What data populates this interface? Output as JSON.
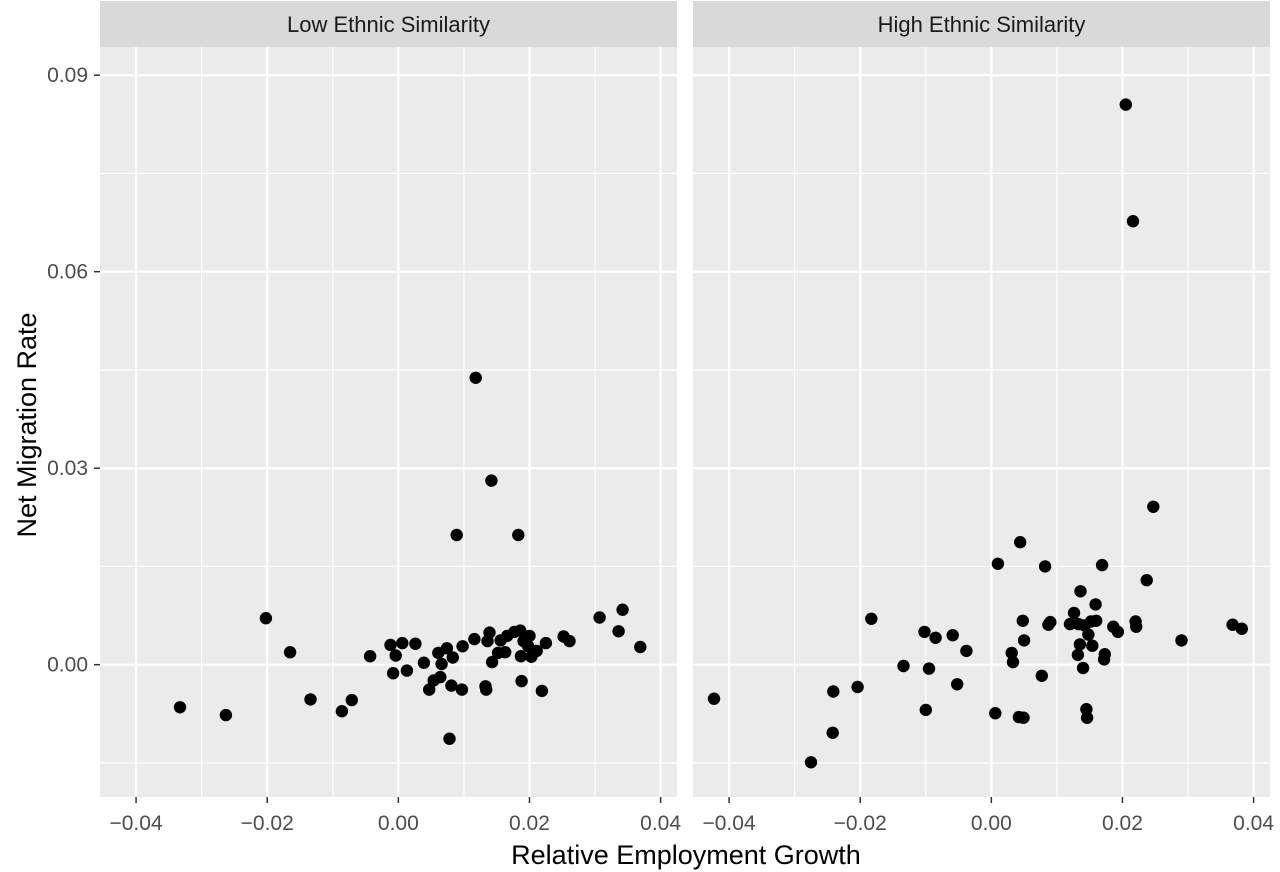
{
  "chart_data": {
    "type": "scatter",
    "xlabel": "Relative Employment Growth",
    "ylabel": "Net Migration Rate",
    "xlim": [
      -0.0455,
      0.0425
    ],
    "ylim": [
      -0.0202,
      0.0943
    ],
    "x_ticks": [
      -0.04,
      -0.02,
      0.0,
      0.02,
      0.04
    ],
    "x_tick_labels": [
      "−0.04",
      "−0.02",
      "0.00",
      "0.02",
      "0.04"
    ],
    "y_ticks": [
      0.0,
      0.03,
      0.06,
      0.09
    ],
    "y_tick_labels": [
      "0.00",
      "0.03",
      "0.06",
      "0.09"
    ],
    "grid": true,
    "legend": "none",
    "point_color": "#000000",
    "panels": [
      {
        "strip": "Low Ethnic Similarity",
        "points": [
          {
            "x": -0.0333,
            "y": -0.0065
          },
          {
            "x": -0.0263,
            "y": -0.0077
          },
          {
            "x": -0.0202,
            "y": 0.0071
          },
          {
            "x": -0.0165,
            "y": 0.0019
          },
          {
            "x": -0.0134,
            "y": -0.0053
          },
          {
            "x": -0.0086,
            "y": -0.0071
          },
          {
            "x": -0.0071,
            "y": -0.0054
          },
          {
            "x": -0.0043,
            "y": 0.0013
          },
          {
            "x": -0.0012,
            "y": 0.003
          },
          {
            "x": -0.0008,
            "y": -0.0013
          },
          {
            "x": -0.0004,
            "y": 0.0014
          },
          {
            "x": 0.0006,
            "y": 0.0033
          },
          {
            "x": 0.0013,
            "y": -0.0009
          },
          {
            "x": 0.0026,
            "y": 0.0032
          },
          {
            "x": 0.0039,
            "y": 0.0003
          },
          {
            "x": 0.0047,
            "y": -0.0038
          },
          {
            "x": 0.0054,
            "y": -0.0024
          },
          {
            "x": 0.0061,
            "y": 0.0018
          },
          {
            "x": 0.0064,
            "y": -0.0019
          },
          {
            "x": 0.0066,
            "y": 0.0001
          },
          {
            "x": 0.0074,
            "y": 0.0025
          },
          {
            "x": 0.0078,
            "y": -0.0113
          },
          {
            "x": 0.0081,
            "y": -0.0032
          },
          {
            "x": 0.0083,
            "y": 0.0011
          },
          {
            "x": 0.0089,
            "y": 0.0198
          },
          {
            "x": 0.0097,
            "y": -0.0038
          },
          {
            "x": 0.0098,
            "y": 0.0028
          },
          {
            "x": 0.0116,
            "y": 0.0039
          },
          {
            "x": 0.0118,
            "y": 0.0438
          },
          {
            "x": 0.0133,
            "y": -0.0033
          },
          {
            "x": 0.0134,
            "y": -0.0038
          },
          {
            "x": 0.0136,
            "y": 0.0036
          },
          {
            "x": 0.0139,
            "y": 0.0049
          },
          {
            "x": 0.0142,
            "y": 0.0281
          },
          {
            "x": 0.0143,
            "y": 0.0004
          },
          {
            "x": 0.0152,
            "y": 0.0018
          },
          {
            "x": 0.0156,
            "y": 0.0037
          },
          {
            "x": 0.0163,
            "y": 0.0019
          },
          {
            "x": 0.0166,
            "y": 0.0044
          },
          {
            "x": 0.0177,
            "y": 0.005
          },
          {
            "x": 0.0183,
            "y": 0.0198
          },
          {
            "x": 0.0186,
            "y": 0.0052
          },
          {
            "x": 0.0187,
            "y": 0.0013
          },
          {
            "x": 0.0188,
            "y": -0.0025
          },
          {
            "x": 0.0191,
            "y": 0.0036
          },
          {
            "x": 0.0198,
            "y": 0.0028
          },
          {
            "x": 0.02,
            "y": 0.0044
          },
          {
            "x": 0.0203,
            "y": 0.0012
          },
          {
            "x": 0.0211,
            "y": 0.0021
          },
          {
            "x": 0.0219,
            "y": -0.004
          },
          {
            "x": 0.0225,
            "y": 0.0033
          },
          {
            "x": 0.0252,
            "y": 0.0043
          },
          {
            "x": 0.0261,
            "y": 0.0036
          },
          {
            "x": 0.0307,
            "y": 0.0072
          },
          {
            "x": 0.0336,
            "y": 0.0051
          },
          {
            "x": 0.0342,
            "y": 0.0084
          },
          {
            "x": 0.0369,
            "y": 0.0027
          }
        ]
      },
      {
        "strip": "High Ethnic Similarity",
        "points": [
          {
            "x": -0.0423,
            "y": -0.0052
          },
          {
            "x": -0.0275,
            "y": -0.0149
          },
          {
            "x": -0.0242,
            "y": -0.0104
          },
          {
            "x": -0.0241,
            "y": -0.0041
          },
          {
            "x": -0.0204,
            "y": -0.0034
          },
          {
            "x": -0.0183,
            "y": 0.007
          },
          {
            "x": -0.0134,
            "y": -0.0002
          },
          {
            "x": -0.0102,
            "y": 0.005
          },
          {
            "x": -0.01,
            "y": -0.0069
          },
          {
            "x": -0.0095,
            "y": -0.0006
          },
          {
            "x": -0.0085,
            "y": 0.0041
          },
          {
            "x": -0.0059,
            "y": 0.0045
          },
          {
            "x": -0.0052,
            "y": -0.003
          },
          {
            "x": -0.0038,
            "y": 0.0021
          },
          {
            "x": 0.0006,
            "y": -0.0074
          },
          {
            "x": 0.001,
            "y": 0.0154
          },
          {
            "x": 0.0031,
            "y": 0.0018
          },
          {
            "x": 0.0033,
            "y": 0.0004
          },
          {
            "x": 0.0042,
            "y": -0.008
          },
          {
            "x": 0.0044,
            "y": 0.0187
          },
          {
            "x": 0.0048,
            "y": 0.0067
          },
          {
            "x": 0.0049,
            "y": -0.0081
          },
          {
            "x": 0.005,
            "y": 0.0037
          },
          {
            "x": 0.0077,
            "y": -0.0017
          },
          {
            "x": 0.0082,
            "y": 0.015
          },
          {
            "x": 0.0087,
            "y": 0.0061
          },
          {
            "x": 0.009,
            "y": 0.0065
          },
          {
            "x": 0.012,
            "y": 0.0062
          },
          {
            "x": 0.0126,
            "y": 0.0079
          },
          {
            "x": 0.0132,
            "y": 0.0015
          },
          {
            "x": 0.0133,
            "y": 0.0062
          },
          {
            "x": 0.0135,
            "y": 0.0031
          },
          {
            "x": 0.0136,
            "y": 0.0112
          },
          {
            "x": 0.014,
            "y": -0.0005
          },
          {
            "x": 0.0142,
            "y": 0.006
          },
          {
            "x": 0.0145,
            "y": -0.0068
          },
          {
            "x": 0.0146,
            "y": -0.0081
          },
          {
            "x": 0.0148,
            "y": 0.0046
          },
          {
            "x": 0.0152,
            "y": 0.0066
          },
          {
            "x": 0.0154,
            "y": 0.0029
          },
          {
            "x": 0.0159,
            "y": 0.0092
          },
          {
            "x": 0.016,
            "y": 0.0067
          },
          {
            "x": 0.0169,
            "y": 0.0152
          },
          {
            "x": 0.0172,
            "y": 0.0008
          },
          {
            "x": 0.0173,
            "y": 0.0016
          },
          {
            "x": 0.0186,
            "y": 0.0058
          },
          {
            "x": 0.0193,
            "y": 0.005
          },
          {
            "x": 0.0205,
            "y": 0.0855
          },
          {
            "x": 0.0216,
            "y": 0.0677
          },
          {
            "x": 0.022,
            "y": 0.0066
          },
          {
            "x": 0.0221,
            "y": 0.0058
          },
          {
            "x": 0.0237,
            "y": 0.0129
          },
          {
            "x": 0.0247,
            "y": 0.0241
          },
          {
            "x": 0.029,
            "y": 0.0037
          },
          {
            "x": 0.0368,
            "y": 0.0061
          },
          {
            "x": 0.0382,
            "y": 0.0055
          }
        ]
      }
    ]
  }
}
